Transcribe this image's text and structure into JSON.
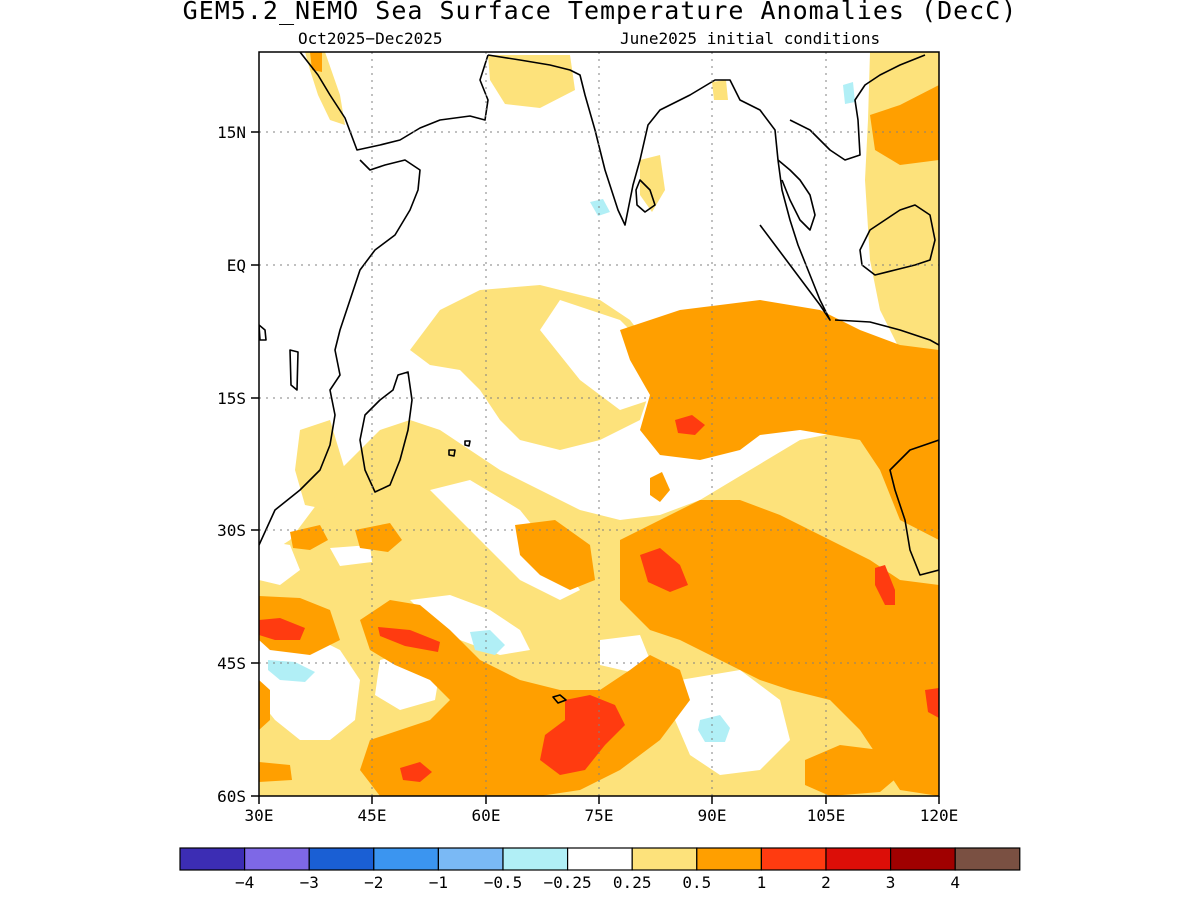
{
  "title": "GEM5.2_NEMO Sea Surface Temperature Anomalies (DecC)",
  "subtitle_left": "Oct2025−Dec2025",
  "subtitle_right": "June2025 initial conditions",
  "map": {
    "lon_range": [
      30,
      120
    ],
    "lat_range": [
      -60,
      24
    ],
    "lon_ticks": [
      "30E",
      "45E",
      "60E",
      "75E",
      "90E",
      "105E",
      "120E"
    ],
    "lat_ticks": [
      "15N",
      "EQ",
      "15S",
      "30S",
      "45S",
      "60S"
    ],
    "grid": "dotted"
  },
  "colorbar": {
    "colors": [
      "#3c2db4",
      "#7e68e6",
      "#1a5fd4",
      "#3b95f0",
      "#7ab9f5",
      "#b1eff6",
      "#ffffff",
      "#fde27b",
      "#ff9f00",
      "#ff3b10",
      "#dc0e08",
      "#a00000",
      "#7a5042"
    ],
    "labels": [
      "−4",
      "−3",
      "−2",
      "−1",
      "−0.5",
      "−0.25",
      "0.25",
      "0.5",
      "1",
      "2",
      "3",
      "4"
    ]
  }
}
